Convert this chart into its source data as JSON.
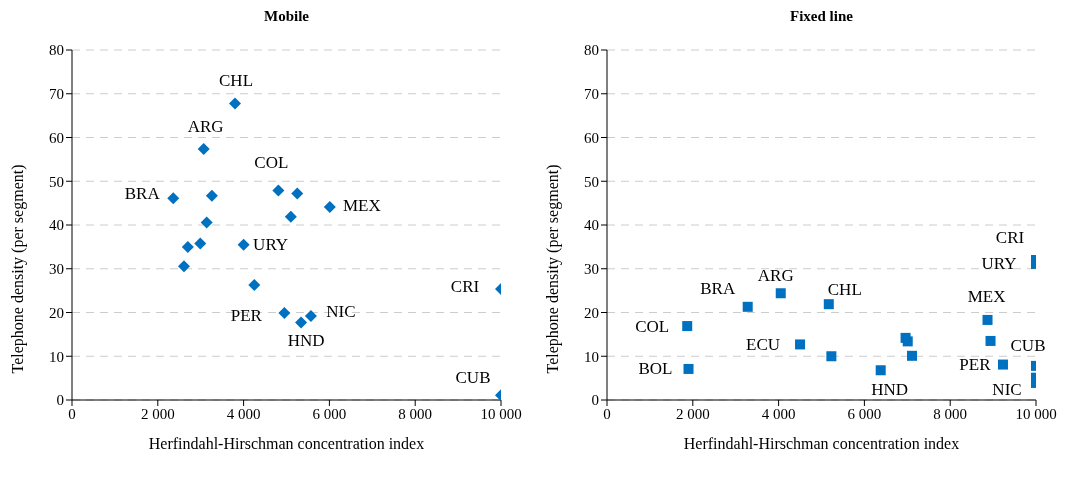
{
  "chart_data": [
    {
      "type": "scatter",
      "title": "Mobile",
      "xlabel": "Herfindahl-Hirschman concentration index",
      "ylabel": "Telephone density (per segment)",
      "color": "#0070c0",
      "marker": "diamond",
      "grid": "y",
      "x": [
        3800,
        3070,
        2360,
        3260,
        4810,
        5250,
        6010,
        5100,
        3140,
        4000,
        2990,
        2700,
        2610,
        4250,
        10000,
        4950,
        5570,
        5340,
        10000
      ],
      "values": [
        67.8,
        57.4,
        46.1,
        46.7,
        47.9,
        47.2,
        44.1,
        41.9,
        40.6,
        35.5,
        35.8,
        35.0,
        30.6,
        26.3,
        25.4,
        19.9,
        19.2,
        17.7,
        1.1
      ],
      "xlim": [
        0,
        10000
      ],
      "ylim": [
        0,
        80
      ],
      "xticks": [
        0,
        {
          "value": 2000,
          "label": "2 000"
        },
        {
          "value": 4000,
          "label": "4 000"
        },
        {
          "value": 6000,
          "label": "6 000"
        },
        {
          "value": 8000,
          "label": "8 000"
        },
        {
          "value": 10000,
          "label": "10 000"
        }
      ],
      "yticks": [
        0,
        10,
        20,
        30,
        40,
        50,
        60,
        70,
        80
      ],
      "annotations": [
        {
          "text": "CHL",
          "x": 3800,
          "y": 67.8
        },
        {
          "text": "ARG",
          "x": 3070,
          "y": 57.4
        },
        {
          "text": "BRA",
          "x": 2360,
          "y": 46.1
        },
        {
          "text": "COL",
          "x": 4810,
          "y": 47.9
        },
        {
          "text": "MEX",
          "x": 6010,
          "y": 44.1
        },
        {
          "text": "URY",
          "x": 4000,
          "y": 35.5
        },
        {
          "text": "CRI",
          "x": 10000,
          "y": 25.4
        },
        {
          "text": "PER",
          "x": 4950,
          "y": 19.9
        },
        {
          "text": "NIC",
          "x": 5570,
          "y": 19.2
        },
        {
          "text": "HND",
          "x": 5340,
          "y": 17.7
        },
        {
          "text": "CUB",
          "x": 10000,
          "y": 1.1
        }
      ]
    },
    {
      "type": "scatter",
      "title": "Fixed line",
      "xlabel": "Herfindahl-Hirschman concentration index",
      "ylabel": "Telephone density (per segment)",
      "color": "#0070c0",
      "marker": "square",
      "grid": "y",
      "x": [
        1870,
        1900,
        3280,
        4050,
        5170,
        4500,
        5230,
        6380,
        6960,
        7010,
        7110,
        8870,
        8940,
        9230,
        10000,
        10000,
        10000,
        10000,
        10000
      ],
      "values": [
        16.9,
        7.1,
        21.3,
        24.4,
        21.9,
        12.7,
        10.0,
        6.8,
        14.2,
        13.4,
        10.1,
        18.3,
        13.5,
        8.1,
        32.0,
        31.1,
        7.8,
        5.1,
        3.9
      ],
      "xlim": [
        0,
        10000
      ],
      "ylim": [
        0,
        80
      ],
      "xticks": [
        0,
        {
          "value": 2000,
          "label": "2 000"
        },
        {
          "value": 4000,
          "label": "4 000"
        },
        {
          "value": 6000,
          "label": "6 000"
        },
        {
          "value": 8000,
          "label": "8 000"
        },
        {
          "value": 10000,
          "label": "10 000"
        }
      ],
      "yticks": [
        0,
        10,
        20,
        30,
        40,
        50,
        60,
        70,
        80
      ],
      "annotations": [
        {
          "text": "COL",
          "x": 1870,
          "y": 16.9
        },
        {
          "text": "BOL",
          "x": 1900,
          "y": 7.1
        },
        {
          "text": "BRA",
          "x": 3280,
          "y": 21.3
        },
        {
          "text": "ARG",
          "x": 4050,
          "y": 24.4
        },
        {
          "text": "CHL",
          "x": 5170,
          "y": 21.9
        },
        {
          "text": "ECU",
          "x": 4500,
          "y": 12.7
        },
        {
          "text": "HND",
          "x": 6380,
          "y": 6.8
        },
        {
          "text": "MEX",
          "x": 8870,
          "y": 18.3
        },
        {
          "text": "CRI",
          "x": 10000,
          "y": 32.0
        },
        {
          "text": "URY",
          "x": 10000,
          "y": 31.1
        },
        {
          "text": "PER",
          "x": 9230,
          "y": 8.1
        },
        {
          "text": "CUB",
          "x": 10000,
          "y": 7.8
        },
        {
          "text": "NIC",
          "x": 10000,
          "y": 3.9
        }
      ]
    }
  ]
}
